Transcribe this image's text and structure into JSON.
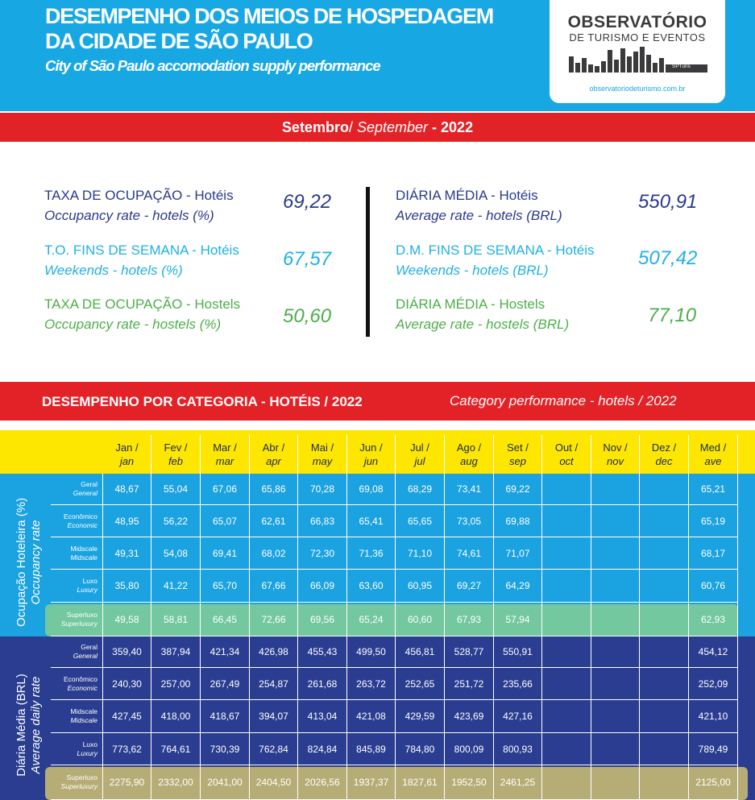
{
  "header": {
    "title_line1": "DESEMPENHO DOS MEIOS DE HOSPEDAGEM",
    "title_line2": "DA CIDADE DE SÃO PAULO",
    "subtitle": "City of São Paulo accomodation supply performance"
  },
  "logo": {
    "name": "OBSERVATÓRIO",
    "sub": "DE TURISMO E EVENTOS",
    "brand": "SPTuris",
    "url": "observatoriodeturismo.com.br"
  },
  "period": {
    "pt": "Setembro",
    "sep": "/ ",
    "en": "September",
    "dash": " - ",
    "year": "2022"
  },
  "kpis_left": [
    {
      "pt": "TAXA DE OCUPAÇÃO - Hotéis",
      "en": "Occupancy rate - hotels (%)",
      "value": "69,22",
      "color": "navy"
    },
    {
      "pt": "T.O. FINS DE SEMANA - Hotéis",
      "en": "Weekends - hotels (%)",
      "value": "67,57",
      "color": "cyan"
    },
    {
      "pt": "TAXA DE OCUPAÇÃO - Hostels",
      "en": "Occupancy rate - hostels (%)",
      "value": "50,60",
      "color": "green"
    }
  ],
  "kpis_right": [
    {
      "pt": "DIÁRIA MÉDIA - Hotéis",
      "en": "Average rate - hotels (BRL)",
      "value": "550,91",
      "color": "navy"
    },
    {
      "pt": "D.M. FINS DE SEMANA - Hotéis",
      "en": "Weekends - hotels (BRL)",
      "value": "507,42",
      "color": "cyan"
    },
    {
      "pt": "DIÁRIA MÉDIA - Hostels",
      "en": "Average rate - hostels (BRL)",
      "value": "77,10",
      "color": "green"
    }
  ],
  "category_bar": {
    "left": "DESEMPENHO POR CATEGORIA - HOTÉIS / 2022",
    "right": "Category performance - hotels / 2022"
  },
  "table": {
    "months": [
      {
        "pt": "Jan /",
        "en": "jan"
      },
      {
        "pt": "Fev /",
        "en": "feb"
      },
      {
        "pt": "Mar /",
        "en": "mar"
      },
      {
        "pt": "Abr /",
        "en": "apr"
      },
      {
        "pt": "Mai /",
        "en": "may"
      },
      {
        "pt": "Jun /",
        "en": "jun"
      },
      {
        "pt": "Jul /",
        "en": "jul"
      },
      {
        "pt": "Ago /",
        "en": "aug"
      },
      {
        "pt": "Set /",
        "en": "sep"
      },
      {
        "pt": "Out /",
        "en": "oct"
      },
      {
        "pt": "Nov /",
        "en": "nov"
      },
      {
        "pt": "Dez /",
        "en": "dec"
      },
      {
        "pt": "Med /",
        "en": "ave"
      }
    ],
    "sections": [
      {
        "label_pt": "Ocupação Hoteleira (%)",
        "label_en": "Occupancy rate",
        "rows": [
          {
            "pt": "Geral",
            "en": "General",
            "values": [
              "48,67",
              "55,04",
              "67,06",
              "65,86",
              "70,28",
              "69,08",
              "68,29",
              "73,41",
              "69,22",
              "",
              "",
              "",
              "65,21"
            ]
          },
          {
            "pt": "Econômico",
            "en": "Economic",
            "values": [
              "48,95",
              "56,22",
              "65,07",
              "62,61",
              "66,83",
              "65,41",
              "65,65",
              "73,05",
              "69,88",
              "",
              "",
              "",
              "65,19"
            ]
          },
          {
            "pt": "Midscale",
            "en": "Midscale",
            "values": [
              "49,31",
              "54,08",
              "69,41",
              "68,02",
              "72,30",
              "71,36",
              "71,10",
              "74,61",
              "71,07",
              "",
              "",
              "",
              "68,17"
            ]
          },
          {
            "pt": "Luxo",
            "en": "Luxury",
            "values": [
              "35,80",
              "41,22",
              "65,70",
              "67,66",
              "66,09",
              "63,60",
              "60,95",
              "69,27",
              "64,29",
              "",
              "",
              "",
              "60,76"
            ]
          },
          {
            "pt": "Superluxo",
            "en": "Superluxury",
            "values": [
              "49,58",
              "58,81",
              "66,45",
              "72,66",
              "69,56",
              "65,24",
              "60,60",
              "67,93",
              "57,94",
              "",
              "",
              "",
              "62,93"
            ]
          }
        ]
      },
      {
        "label_pt": "Diária Média (BRL)",
        "label_en": "Average daily rate",
        "rows": [
          {
            "pt": "Geral",
            "en": "General",
            "values": [
              "359,40",
              "387,94",
              "421,34",
              "426,98",
              "455,43",
              "499,50",
              "456,81",
              "528,77",
              "550,91",
              "",
              "",
              "",
              "454,12"
            ]
          },
          {
            "pt": "Econômico",
            "en": "Economic",
            "values": [
              "240,30",
              "257,00",
              "267,49",
              "254,87",
              "261,68",
              "263,72",
              "252,65",
              "251,72",
              "235,66",
              "",
              "",
              "",
              "252,09"
            ]
          },
          {
            "pt": "Midscale",
            "en": "Midscale",
            "values": [
              "427,45",
              "418,00",
              "418,67",
              "394,07",
              "413,04",
              "421,08",
              "429,59",
              "423,69",
              "427,16",
              "",
              "",
              "",
              "421,10"
            ]
          },
          {
            "pt": "Luxo",
            "en": "Luxury",
            "values": [
              "773,62",
              "764,61",
              "730,39",
              "762,84",
              "824,84",
              "845,89",
              "784,80",
              "800,09",
              "800,93",
              "",
              "",
              "",
              "789,49"
            ]
          },
          {
            "pt": "Superluxo",
            "en": "Superluxury",
            "values": [
              "2275,90",
              "2332,00",
              "2041,00",
              "2404,50",
              "2026,56",
              "1937,37",
              "1827,61",
              "1952,50",
              "2461,25",
              "",
              "",
              "",
              "2125,00"
            ]
          }
        ]
      }
    ]
  },
  "colors": {
    "header_blue": "#17a8e3",
    "red_bar": "#e32227",
    "yellow_bar": "#fde600",
    "occupancy_blue": "#1ba2e0",
    "rate_navy": "#2a3d90",
    "navy_text": "#2b3a8c",
    "cyan_text": "#1fb1e6",
    "green_text": "#4caf4a"
  }
}
